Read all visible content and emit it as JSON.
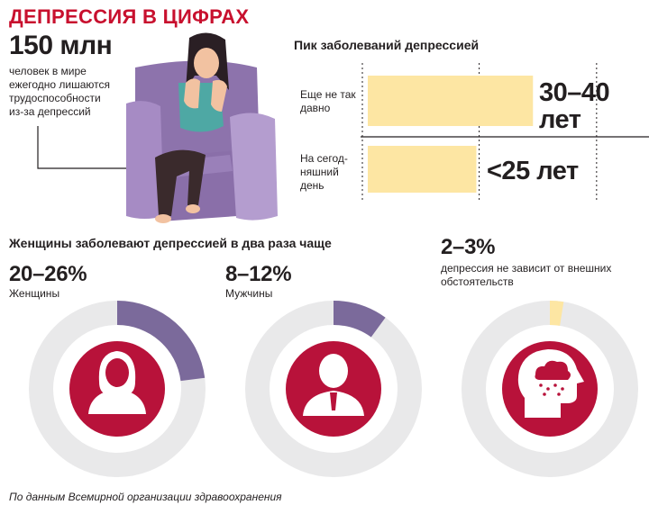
{
  "title": "ДЕПРЕССИЯ В ЦИФРАХ",
  "stat": {
    "value": "150 млн",
    "text_lines": [
      "человек в мире",
      "ежегодно лишаются",
      "трудоспособности",
      "из-за депрессий"
    ]
  },
  "chart_data": [
    {
      "type": "bar",
      "title": "Пик заболеваний депрессией",
      "orientation": "horizontal",
      "categories": [
        "Еще не так давно",
        "На сегодняшний день"
      ],
      "category_lines": [
        [
          "Еще не так",
          "давно"
        ],
        [
          "На сегод-",
          "няшний",
          "день"
        ]
      ],
      "value_labels": [
        [
          "30–40",
          "лет"
        ],
        [
          "<25 лет"
        ]
      ],
      "values": [
        35,
        23
      ],
      "xlim": [
        0,
        55
      ],
      "bar_color": "#fde6a3"
    },
    {
      "type": "pie",
      "title": "Женщины заболевают депрессией в два раза чаще",
      "items": [
        {
          "label": "Женщины",
          "value_text": "20–26%",
          "share": 23,
          "color": "#7b6a9b",
          "icon": "woman-icon"
        },
        {
          "label": "Мужчины",
          "value_text": "8–12%",
          "share": 10,
          "color": "#7b6a9b",
          "icon": "man-icon"
        },
        {
          "label": "депрессия не зависит от внешних обстоятельств",
          "label_lines": [
            "депрессия не зависит от внешних",
            "обстоятельств"
          ],
          "value_text": "2–3%",
          "share": 2.5,
          "color": "#fde6a3",
          "icon": "head-cloud-icon"
        }
      ],
      "ring_color": "#e9e9ea",
      "center_color": "#b8123a"
    }
  ],
  "source": "По данным Всемирной организации здравоохранения"
}
